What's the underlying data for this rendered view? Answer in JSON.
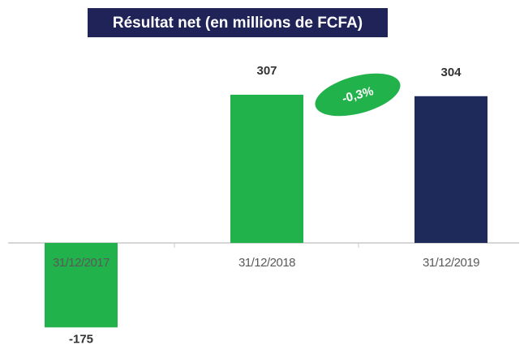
{
  "chart_data": {
    "type": "bar",
    "title": "Résultat net (en millions de FCFA)",
    "categories": [
      "31/12/2017",
      "31/12/2018",
      "31/12/2019"
    ],
    "values": [
      -175,
      307,
      304
    ],
    "colors": [
      "#22b24c",
      "#22b24c",
      "#1e2a5a"
    ],
    "annotations": [
      "-0,3%"
    ]
  }
}
